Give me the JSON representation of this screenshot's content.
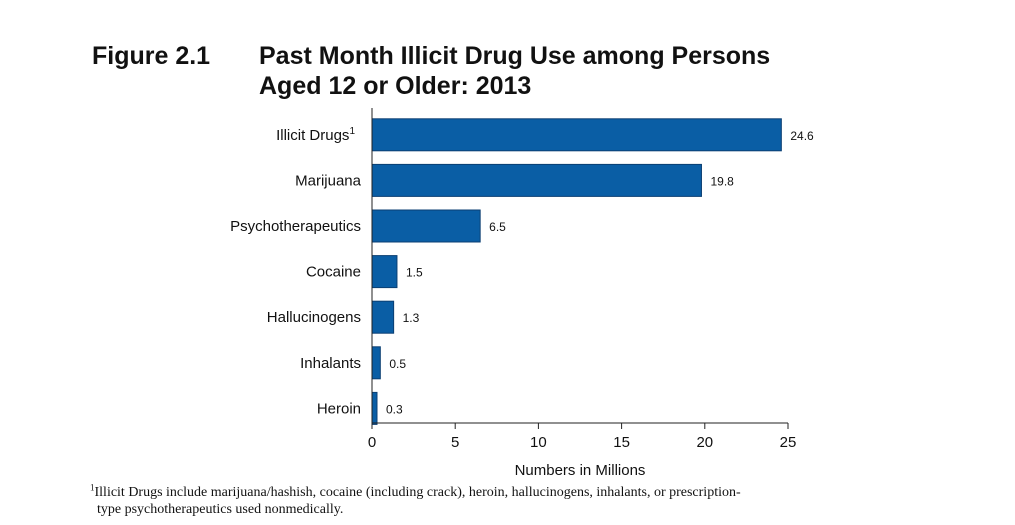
{
  "figure": {
    "label": "Figure 2.1",
    "title_line1": "Past Month Illicit Drug Use among Persons",
    "title_line2": "Aged 12 or Older: 2013"
  },
  "chart_data": {
    "type": "bar",
    "orientation": "horizontal",
    "title": "Past Month Illicit Drug Use among Persons Aged 12 or Older: 2013",
    "categories": [
      "Illicit Drugs",
      "Marijuana",
      "Psychotherapeutics",
      "Cocaine",
      "Hallucinogens",
      "Inhalants",
      "Heroin"
    ],
    "category_superscripts": [
      "1",
      "",
      "",
      "",
      "",
      "",
      ""
    ],
    "values": [
      24.6,
      19.8,
      6.5,
      1.5,
      1.3,
      0.5,
      0.3
    ],
    "value_labels": [
      "24.6",
      "19.8",
      "6.5",
      "1.5",
      "1.3",
      "0.5",
      "0.3"
    ],
    "xlabel": "Numbers in Millions",
    "ylabel": "",
    "xlim": [
      0,
      25
    ],
    "xticks": [
      0,
      5,
      10,
      15,
      20,
      25
    ],
    "grid": false,
    "bar_color": "#0a5ea5"
  },
  "footnote": {
    "mark": "1",
    "line1": "Illicit Drugs include marijuana/hashish, cocaine (including crack), heroin, hallucinogens, inhalants, or prescription-",
    "line2": "type psychotherapeutics used nonmedically."
  }
}
